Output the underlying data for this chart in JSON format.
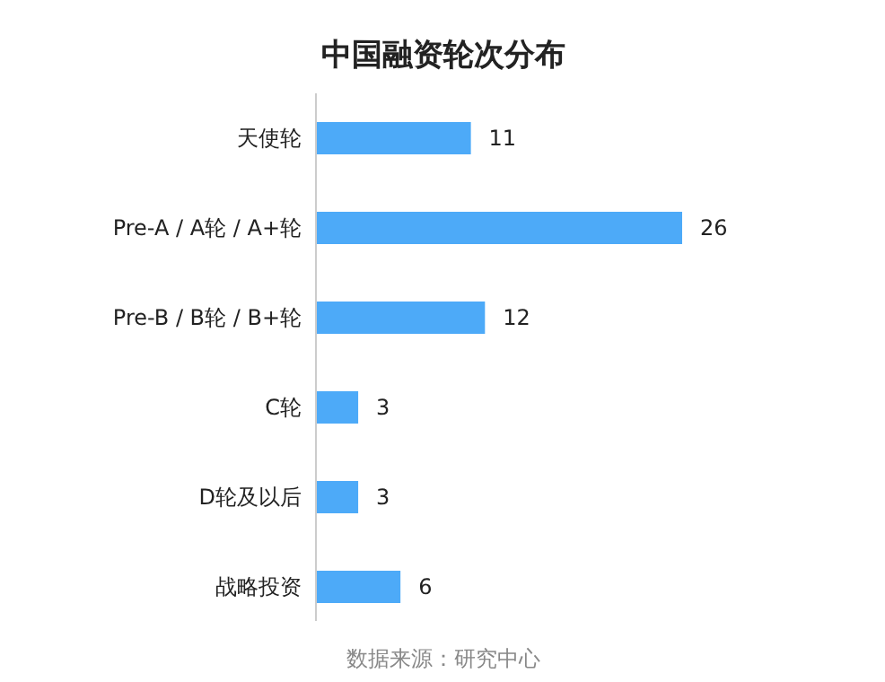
{
  "chart_data": {
    "type": "bar",
    "orientation": "horizontal",
    "title": "中国融资轮次分布",
    "categories": [
      "天使轮",
      "Pre-A / A轮 / A+轮",
      "Pre-B / B轮 / B+轮",
      "C轮",
      "D轮及以后",
      "战略投资"
    ],
    "values": [
      11,
      26,
      12,
      3,
      3,
      6
    ],
    "color": "#4daaf8",
    "xlim": [
      0,
      26
    ],
    "data_labels": true,
    "tick_labels": "y",
    "annotations": [
      "数据来源：研究中心"
    ]
  }
}
